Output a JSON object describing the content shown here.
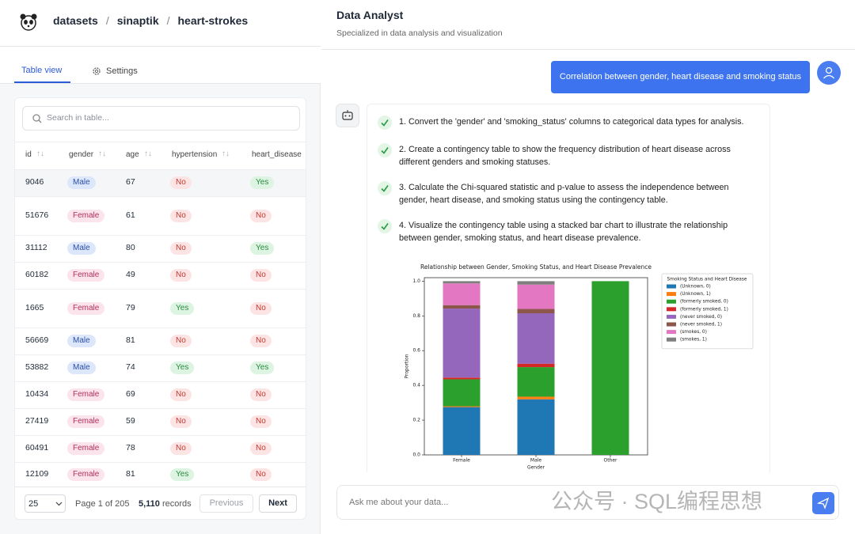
{
  "header": {
    "breadcrumb": [
      "datasets",
      "sinaptik",
      "heart-strokes"
    ]
  },
  "tabs": [
    "Table view",
    "Settings"
  ],
  "table": {
    "search_placeholder": "Search in table...",
    "columns": [
      "id",
      "gender",
      "age",
      "hypertension",
      "heart_disease"
    ],
    "rows": [
      [
        9046,
        {
          "text": "Male",
          "tone": "blue"
        },
        67,
        {
          "text": "No",
          "tone": "red"
        },
        {
          "text": "Yes",
          "tone": "green"
        }
      ],
      [
        51676,
        {
          "text": "Female",
          "tone": "pink"
        },
        61,
        {
          "text": "No",
          "tone": "red"
        },
        {
          "text": "No",
          "tone": "red"
        }
      ],
      [
        31112,
        {
          "text": "Male",
          "tone": "blue"
        },
        80,
        {
          "text": "No",
          "tone": "red"
        },
        {
          "text": "Yes",
          "tone": "green"
        }
      ],
      [
        60182,
        {
          "text": "Female",
          "tone": "pink"
        },
        49,
        {
          "text": "No",
          "tone": "red"
        },
        {
          "text": "No",
          "tone": "red"
        }
      ],
      [
        1665,
        {
          "text": "Female",
          "tone": "pink"
        },
        79,
        {
          "text": "Yes",
          "tone": "green"
        },
        {
          "text": "No",
          "tone": "red"
        }
      ],
      [
        56669,
        {
          "text": "Male",
          "tone": "blue"
        },
        81,
        {
          "text": "No",
          "tone": "red"
        },
        {
          "text": "No",
          "tone": "red"
        }
      ],
      [
        53882,
        {
          "text": "Male",
          "tone": "blue"
        },
        74,
        {
          "text": "Yes",
          "tone": "green"
        },
        {
          "text": "Yes",
          "tone": "green"
        }
      ],
      [
        10434,
        {
          "text": "Female",
          "tone": "pink"
        },
        69,
        {
          "text": "No",
          "tone": "red"
        },
        {
          "text": "No",
          "tone": "red"
        }
      ],
      [
        27419,
        {
          "text": "Female",
          "tone": "pink"
        },
        59,
        {
          "text": "No",
          "tone": "red"
        },
        {
          "text": "No",
          "tone": "red"
        }
      ],
      [
        60491,
        {
          "text": "Female",
          "tone": "pink"
        },
        78,
        {
          "text": "No",
          "tone": "red"
        },
        {
          "text": "No",
          "tone": "red"
        }
      ],
      [
        12109,
        {
          "text": "Female",
          "tone": "pink"
        },
        81,
        {
          "text": "Yes",
          "tone": "green"
        },
        {
          "text": "No",
          "tone": "red"
        }
      ]
    ]
  },
  "pagination": {
    "page_size": 25,
    "page_info": "Page 1 of 205",
    "records_count": "5,110",
    "records_label": "records",
    "previous": "Previous",
    "next": "Next"
  },
  "chat": {
    "title": "Data Analyst",
    "subtitle": "Specialized in data analysis and visualization",
    "user_message": "Correlation between gender, heart disease and smoking status",
    "steps": [
      "1. Convert the 'gender' and 'smoking_status' columns to categorical data types for analysis.",
      "2. Create a contingency table to show the frequency distribution of heart disease across different genders and smoking statuses.",
      "3. Calculate the Chi-squared statistic and p-value to assess the independence between gender, heart disease, and smoking status using the contingency table.",
      "4. Visualize the contingency table using a stacked bar chart to illustrate the relationship between gender, smoking status, and heart disease prevalence."
    ],
    "input_placeholder": "Ask me about your data..."
  },
  "watermark": "公众号 · SQL编程思想",
  "chart_data": {
    "type": "bar",
    "stacked": true,
    "title": "Relationship between Gender, Smoking Status, and Heart Disease Prevalence",
    "x_label": "Gender",
    "y_label": "Proportion",
    "legend_title": "Smoking Status and Heart Disease",
    "legend": "outside right",
    "categories": [
      "Female",
      "Male",
      "Other"
    ],
    "series": [
      {
        "name": "(Unknown, 0)",
        "color": "#1f77b4",
        "values": [
          0.275,
          0.32,
          0
        ]
      },
      {
        "name": "(Unknown, 1)",
        "color": "#ff7f0e",
        "values": [
          0.005,
          0.015,
          0
        ]
      },
      {
        "name": "(formerly smoked, 0)",
        "color": "#2ca02c",
        "values": [
          0.155,
          0.17,
          1.0
        ]
      },
      {
        "name": "(formerly smoked, 1)",
        "color": "#d62728",
        "values": [
          0.01,
          0.02,
          0
        ]
      },
      {
        "name": "(never smoked, 0)",
        "color": "#9467bd",
        "values": [
          0.397,
          0.29,
          0
        ]
      },
      {
        "name": "(never smoked, 1)",
        "color": "#8c564b",
        "values": [
          0.02,
          0.025,
          0
        ]
      },
      {
        "name": "(smokes, 0)",
        "color": "#e377c2",
        "values": [
          0.125,
          0.14,
          0
        ]
      },
      {
        "name": "(smokes, 1)",
        "color": "#7f7f7f",
        "values": [
          0.013,
          0.02,
          0
        ]
      }
    ],
    "ylim": [
      0,
      1.02
    ],
    "yticks": [
      {
        "value": 0,
        "label": "0.0"
      },
      0.2,
      0.4,
      0.6,
      0.8,
      {
        "value": 1,
        "label": "1.0"
      }
    ]
  }
}
